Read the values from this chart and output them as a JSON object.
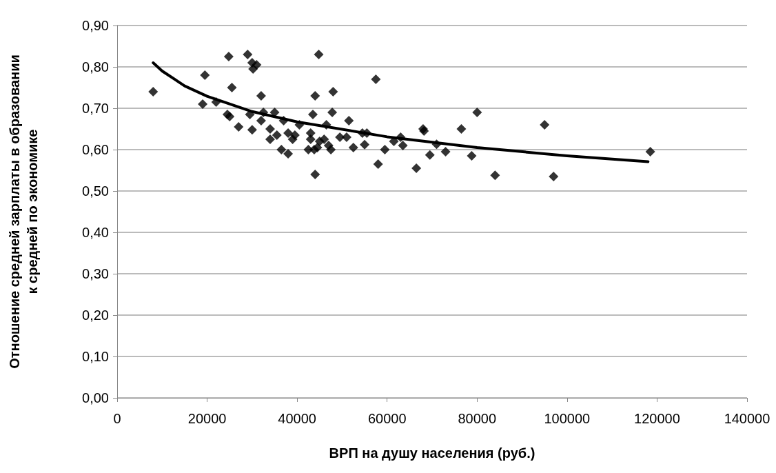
{
  "chart_data": {
    "type": "scatter",
    "xlabel": "ВРП на душу населения (руб.)",
    "ylabel": "Отношение средней зарплаты в образовании\nк средней по экономике",
    "xlim": [
      0,
      140000
    ],
    "xticks": [
      0,
      20000,
      40000,
      60000,
      80000,
      100000,
      120000,
      140000
    ],
    "ylim": [
      0,
      0.9
    ],
    "yticks": [
      {
        "value": 0,
        "label": "0,00"
      },
      {
        "value": 0.1,
        "label": "0,10"
      },
      {
        "value": 0.2,
        "label": "0,20"
      },
      {
        "value": 0.3,
        "label": "0,30"
      },
      {
        "value": 0.4,
        "label": "0,40"
      },
      {
        "value": 0.5,
        "label": "0,50"
      },
      {
        "value": 0.6,
        "label": "0,60"
      },
      {
        "value": 0.7,
        "label": "0,70"
      },
      {
        "value": 0.8,
        "label": "0,80"
      },
      {
        "value": 0.9,
        "label": "0,90"
      }
    ],
    "grid": "y",
    "marker": "diamond",
    "series": [
      {
        "color": "#000000",
        "x": [
          8000,
          19000,
          19500,
          22000,
          24500,
          25000,
          24800,
          25500,
          27000,
          29000,
          29500,
          30000,
          30200,
          30000,
          31000,
          32000,
          32000,
          32500,
          34000,
          34000,
          35000,
          35500,
          36500,
          37000,
          38000,
          38000,
          39000,
          39500,
          40500,
          42500,
          43000,
          43000,
          43500,
          43800,
          44000,
          44000,
          44500,
          44800,
          45000,
          46000,
          46500,
          47000,
          47500,
          47800,
          48000,
          49500,
          51000,
          51500,
          52500,
          54500,
          55000,
          55500,
          57500,
          58000,
          59500,
          61500,
          63000,
          63500,
          66500,
          68000,
          68200,
          69500,
          71000,
          73000,
          76500,
          78800,
          80000,
          84000,
          95000,
          97000,
          118500
        ],
        "values": [
          0.74,
          0.71,
          0.78,
          0.715,
          0.685,
          0.68,
          0.825,
          0.75,
          0.655,
          0.83,
          0.685,
          0.81,
          0.795,
          0.648,
          0.805,
          0.73,
          0.67,
          0.69,
          0.65,
          0.625,
          0.69,
          0.635,
          0.6,
          0.67,
          0.59,
          0.64,
          0.625,
          0.635,
          0.66,
          0.6,
          0.625,
          0.64,
          0.685,
          0.6,
          0.73,
          0.54,
          0.605,
          0.83,
          0.62,
          0.625,
          0.66,
          0.61,
          0.6,
          0.69,
          0.74,
          0.63,
          0.63,
          0.67,
          0.605,
          0.64,
          0.612,
          0.64,
          0.77,
          0.565,
          0.6,
          0.62,
          0.63,
          0.61,
          0.555,
          0.65,
          0.645,
          0.587,
          0.613,
          0.595,
          0.65,
          0.585,
          0.69,
          0.538,
          0.66,
          0.535,
          0.595
        ]
      },
      {
        "type": "line",
        "color": "#000000",
        "marker": "none",
        "line_style": "solid",
        "x": [
          8000,
          10000,
          15000,
          20000,
          30000,
          40000,
          60000,
          80000,
          100000,
          118000
        ],
        "values": [
          0.81,
          0.79,
          0.754,
          0.729,
          0.692,
          0.667,
          0.631,
          0.605,
          0.585,
          0.571
        ]
      }
    ]
  }
}
